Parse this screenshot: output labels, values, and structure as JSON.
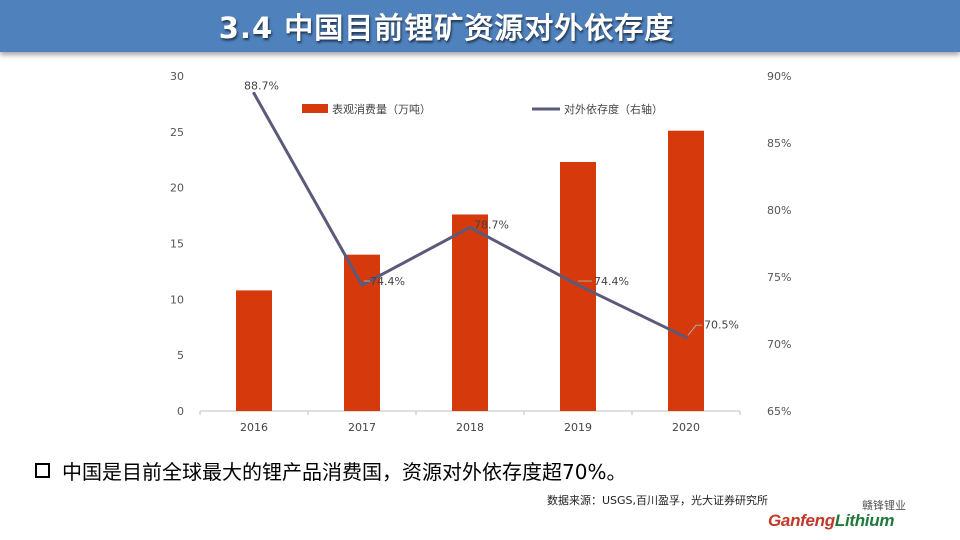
{
  "header": {
    "title": "3.4  中国目前锂矿资源对外依存度"
  },
  "chart_data": {
    "type": "bar",
    "categories": [
      "2016",
      "2017",
      "2018",
      "2019",
      "2020"
    ],
    "series": [
      {
        "name": "表观消费量（万吨）",
        "type": "bar",
        "axis": "left",
        "color": "#d63a0c",
        "values": [
          10.8,
          14.0,
          17.6,
          22.3,
          25.1
        ]
      },
      {
        "name": "对外依存度（右轴）",
        "type": "line",
        "axis": "right",
        "color": "#5a5a7a",
        "values": [
          88.7,
          74.4,
          78.7,
          74.4,
          70.5
        ],
        "labels": [
          "88.7%",
          "74.4%",
          "78.7%",
          "74.4%",
          "70.5%"
        ]
      }
    ],
    "ylim": [
      0,
      30
    ],
    "yticks": [
      "0",
      "5",
      "10",
      "15",
      "20",
      "25",
      "30"
    ],
    "y2lim": [
      65,
      90
    ],
    "y2ticks": [
      "65%",
      "70%",
      "75%",
      "80%",
      "85%",
      "90%"
    ],
    "legend_position": "top",
    "grid": false
  },
  "bullet": {
    "text": "中国是目前全球最大的锂产品消费国，资源对外依存度超70%。"
  },
  "source": {
    "text": "数据来源：USGS,百川盈孚，光大证券研究所"
  },
  "logo": {
    "cn": "赣锋锂业",
    "en_part1": "Ganfeng",
    "en_part2": "Lithium"
  }
}
